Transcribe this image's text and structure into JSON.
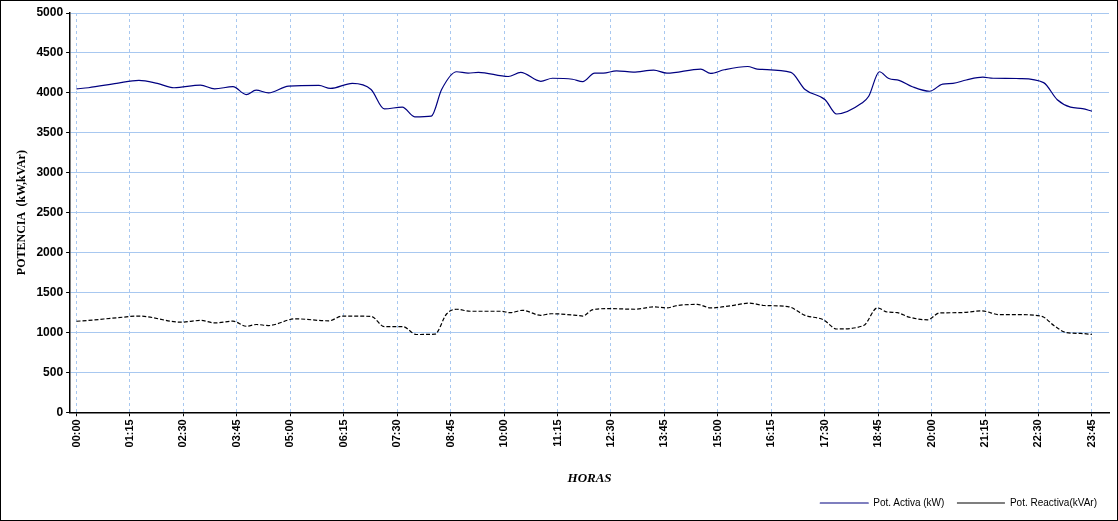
{
  "chart_data": {
    "type": "line",
    "xlabel": "HORAS",
    "ylabel": "POTENCIA  (kW,kVAr)",
    "xlim": [
      -0.15,
      24.15
    ],
    "ylim": [
      0,
      5000
    ],
    "xticks": [
      {
        "value": 0,
        "label": "00:00"
      },
      {
        "value": 1.25,
        "label": "01:15"
      },
      {
        "value": 2.5,
        "label": "02:30"
      },
      {
        "value": 3.75,
        "label": "03:45"
      },
      {
        "value": 5,
        "label": "05:00"
      },
      {
        "value": 6.25,
        "label": "06:15"
      },
      {
        "value": 7.5,
        "label": "07:30"
      },
      {
        "value": 8.75,
        "label": "08:45"
      },
      {
        "value": 10,
        "label": "10:00"
      },
      {
        "value": 11.25,
        "label": "11:15"
      },
      {
        "value": 12.5,
        "label": "12:30"
      },
      {
        "value": 13.75,
        "label": "13:45"
      },
      {
        "value": 15,
        "label": "15:00"
      },
      {
        "value": 16.25,
        "label": "16:15"
      },
      {
        "value": 17.5,
        "label": "17:30"
      },
      {
        "value": 18.75,
        "label": "18:45"
      },
      {
        "value": 20,
        "label": "20:00"
      },
      {
        "value": 21.25,
        "label": "21:15"
      },
      {
        "value": 22.5,
        "label": "22:30"
      },
      {
        "value": 23.75,
        "label": "23:45"
      }
    ],
    "yticks": [
      0,
      500,
      1000,
      1500,
      2000,
      2500,
      3000,
      3500,
      4000,
      4500,
      5000
    ],
    "grid": true,
    "legend": "bottom right",
    "marker": "none",
    "series": [
      {
        "name": "Pot. Activa (kW)",
        "color": "#000080",
        "line_style": "solid",
        "x": [
          0,
          0.28,
          0.94,
          1.46,
          1.89,
          2.28,
          2.9,
          3.23,
          3.66,
          3.97,
          4.2,
          4.49,
          4.96,
          5.67,
          5.94,
          6.45,
          6.89,
          7.2,
          7.62,
          7.91,
          8.3,
          8.54,
          8.89,
          9.16,
          9.4,
          10.1,
          10.39,
          10.86,
          11.13,
          11.6,
          11.84,
          12.12,
          12.32,
          12.63,
          13.02,
          13.5,
          13.81,
          14.6,
          14.83,
          15.15,
          15.7,
          15.92,
          16.71,
          17.04,
          17.51,
          17.78,
          18.37,
          18.53,
          18.78,
          19.0,
          19.24,
          19.55,
          19.95,
          20.26,
          20.5,
          20.81,
          21.2,
          21.44,
          22.07,
          22.62,
          22.94,
          23.25,
          23.53,
          23.75
        ],
        "values": [
          4050,
          4064,
          4119,
          4157,
          4119,
          4064,
          4097,
          4051,
          4077,
          3978,
          4033,
          4000,
          4085,
          4093,
          4055,
          4119,
          4042,
          3799,
          3821,
          3700,
          3709,
          4042,
          4264,
          4247,
          4256,
          4205,
          4256,
          4145,
          4183,
          4170,
          4141,
          4247,
          4247,
          4276,
          4260,
          4285,
          4247,
          4298,
          4243,
          4289,
          4330,
          4298,
          4256,
          4042,
          3914,
          3735,
          3872,
          3957,
          4264,
          4179,
          4157,
          4077,
          4020,
          4110,
          4119,
          4161,
          4196,
          4183,
          4179,
          4128,
          3914,
          3821,
          3803,
          3770
        ]
      },
      {
        "name": "Pot. Reactiva(kVAr)",
        "color": "#000000",
        "line_style": "dashed",
        "x": [
          0,
          0.28,
          0.94,
          1.46,
          2.44,
          2.91,
          3.23,
          3.66,
          3.97,
          4.21,
          4.49,
          5.12,
          5.9,
          6.22,
          6.89,
          7.2,
          7.63,
          7.95,
          8.38,
          8.66,
          8.89,
          9.21,
          9.92,
          10.15,
          10.43,
          10.86,
          11.1,
          11.69,
          11.84,
          12.08,
          12.47,
          13.06,
          13.5,
          13.81,
          14.05,
          14.52,
          14.83,
          15.3,
          15.74,
          16.09,
          16.64,
          17.04,
          17.47,
          17.78,
          18.41,
          18.73,
          18.96,
          19.2,
          19.47,
          19.91,
          20.18,
          20.66,
          21.17,
          21.6,
          22.07,
          22.58,
          22.86,
          23.14,
          23.49,
          23.75
        ],
        "values": [
          1140,
          1150,
          1183,
          1205,
          1128,
          1150,
          1119,
          1141,
          1077,
          1099,
          1086,
          1170,
          1145,
          1205,
          1201,
          1073,
          1073,
          974,
          978,
          1234,
          1290,
          1265,
          1265,
          1247,
          1277,
          1214,
          1234,
          1214,
          1205,
          1286,
          1298,
          1290,
          1320,
          1307,
          1337,
          1350,
          1307,
          1333,
          1367,
          1337,
          1324,
          1214,
          1158,
          1043,
          1086,
          1307,
          1256,
          1247,
          1192,
          1158,
          1243,
          1247,
          1269,
          1222,
          1222,
          1201,
          1086,
          1000,
          987,
          975
        ]
      }
    ]
  }
}
